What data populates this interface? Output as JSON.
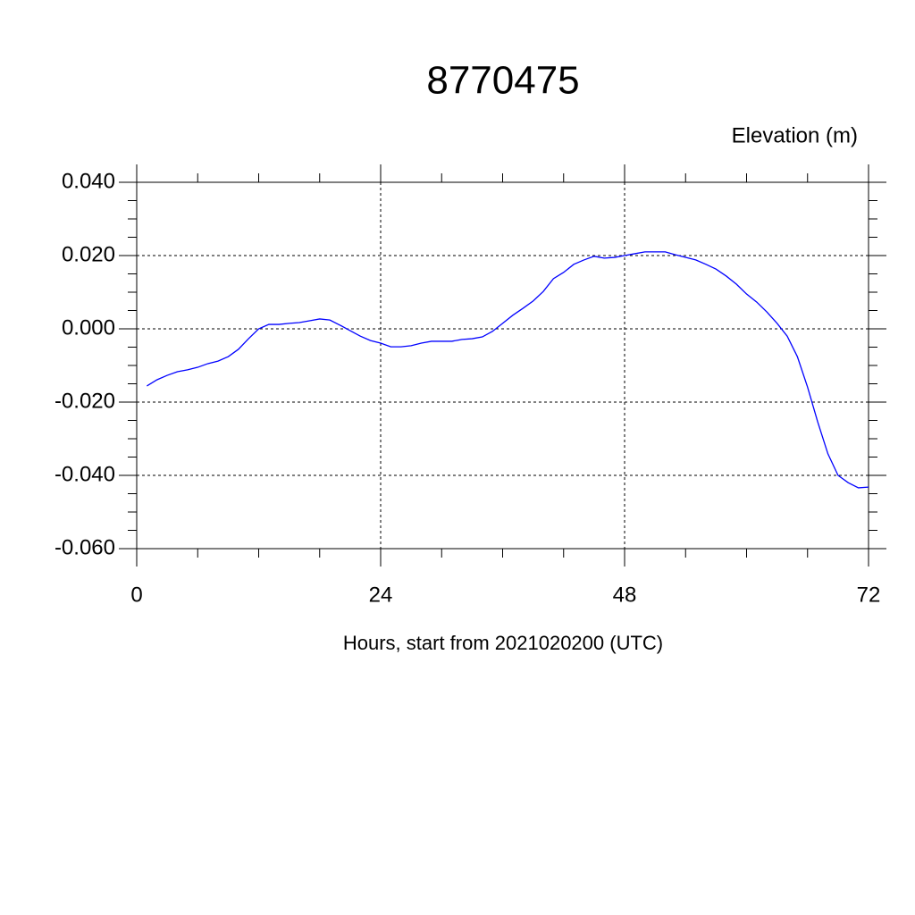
{
  "chart_data": {
    "type": "line",
    "title": "8770475",
    "y_label": "Elevation (m)",
    "x_label": "Hours, start from 2021020200 (UTC)",
    "x": [
      1,
      2,
      3,
      4,
      5,
      6,
      7,
      8,
      9,
      10,
      11,
      12,
      13,
      14,
      15,
      16,
      17,
      18,
      19,
      20,
      21,
      22,
      23,
      24,
      25,
      26,
      27,
      28,
      29,
      30,
      31,
      32,
      33,
      34,
      35,
      36,
      37,
      38,
      39,
      40,
      41,
      42,
      43,
      44,
      45,
      46,
      47,
      48,
      49,
      50,
      51,
      52,
      53,
      54,
      55,
      56,
      57,
      58,
      59,
      60,
      61,
      62,
      63,
      64,
      65,
      66,
      67,
      68,
      69,
      70,
      71,
      72
    ],
    "series": [
      {
        "name": "Elevation",
        "color": "#0000ff",
        "values": [
          -0.0156,
          -0.0139,
          -0.0127,
          -0.0117,
          -0.0112,
          -0.0105,
          -0.0095,
          -0.0088,
          -0.0076,
          -0.0056,
          -0.0027,
          0.0,
          0.0012,
          0.0012,
          0.0015,
          0.0017,
          0.0022,
          0.0027,
          0.0024,
          0.001,
          -0.0005,
          -0.002,
          -0.0032,
          -0.0039,
          -0.0049,
          -0.0049,
          -0.0046,
          -0.0039,
          -0.0034,
          -0.0034,
          -0.0034,
          -0.0029,
          -0.0027,
          -0.0022,
          -0.0007,
          0.0015,
          0.0037,
          0.0056,
          0.0076,
          0.0102,
          0.0137,
          0.0154,
          0.0176,
          0.0188,
          0.0198,
          0.0193,
          0.0195,
          0.02,
          0.0205,
          0.021,
          0.021,
          0.021,
          0.0202,
          0.0195,
          0.0188,
          0.0176,
          0.0163,
          0.0144,
          0.0122,
          0.0095,
          0.0073,
          0.0046,
          0.0015,
          -0.002,
          -0.0076,
          -0.0159,
          -0.0254,
          -0.0341,
          -0.04,
          -0.042,
          -0.0434,
          -0.0432
        ]
      }
    ],
    "xlim": [
      0,
      72
    ],
    "xticks": [
      0,
      24,
      48,
      72
    ],
    "ylim": [
      -0.06,
      0.04
    ],
    "yticks": [
      {
        "value": -0.06,
        "label": "-0.060"
      },
      {
        "value": -0.04,
        "label": "-0.040"
      },
      {
        "value": -0.02,
        "label": "-0.020"
      },
      {
        "value": 0,
        "label": "0.000"
      },
      {
        "value": 0.02,
        "label": "0.020"
      },
      {
        "value": 0.04,
        "label": "0.040"
      }
    ],
    "grid": true
  }
}
